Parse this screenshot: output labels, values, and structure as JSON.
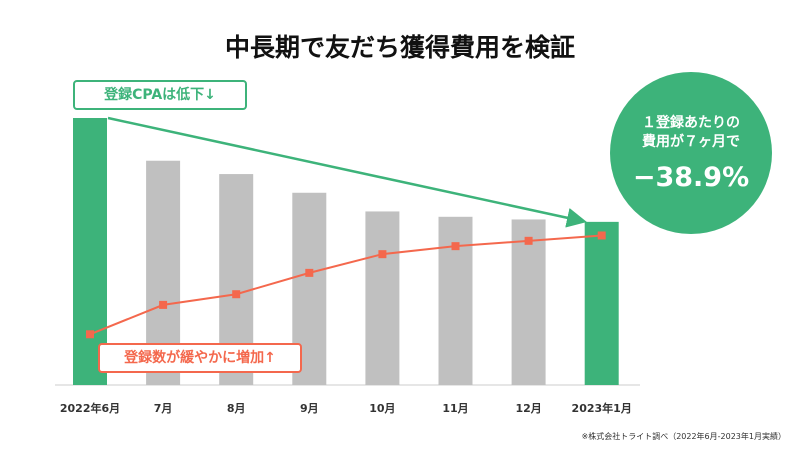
{
  "title": "中長期で友だち獲得費用を検証",
  "chart_data": {
    "type": "bar",
    "title": "中長期で友だち獲得費用を検証",
    "categories": [
      "2022年6月",
      "7月",
      "8月",
      "9月",
      "10月",
      "11月",
      "12月",
      "2023年1月"
    ],
    "series": [
      {
        "name": "登録CPA",
        "type": "bar",
        "values": [
          100,
          84,
          79,
          72,
          65,
          63,
          62,
          61.1
        ]
      },
      {
        "name": "登録数",
        "type": "line",
        "values": [
          19,
          30,
          34,
          42,
          49,
          52,
          54,
          56
        ]
      }
    ],
    "ylim": [
      0,
      100
    ],
    "annotations": {
      "cpa_label": "登録CPAは低下↓",
      "count_label": "登録数が緩やかに増加↑"
    },
    "colors": {
      "highlight": "#3db37a",
      "bar": "#c0c0c0",
      "line": "#f4684d"
    }
  },
  "callout": {
    "line1": "１登録あたりの",
    "line2": "費用が７ヶ月で",
    "value": "−38.9%"
  },
  "note": "※株式会社トライト調べ（2022年6月-2023年1月実績）"
}
